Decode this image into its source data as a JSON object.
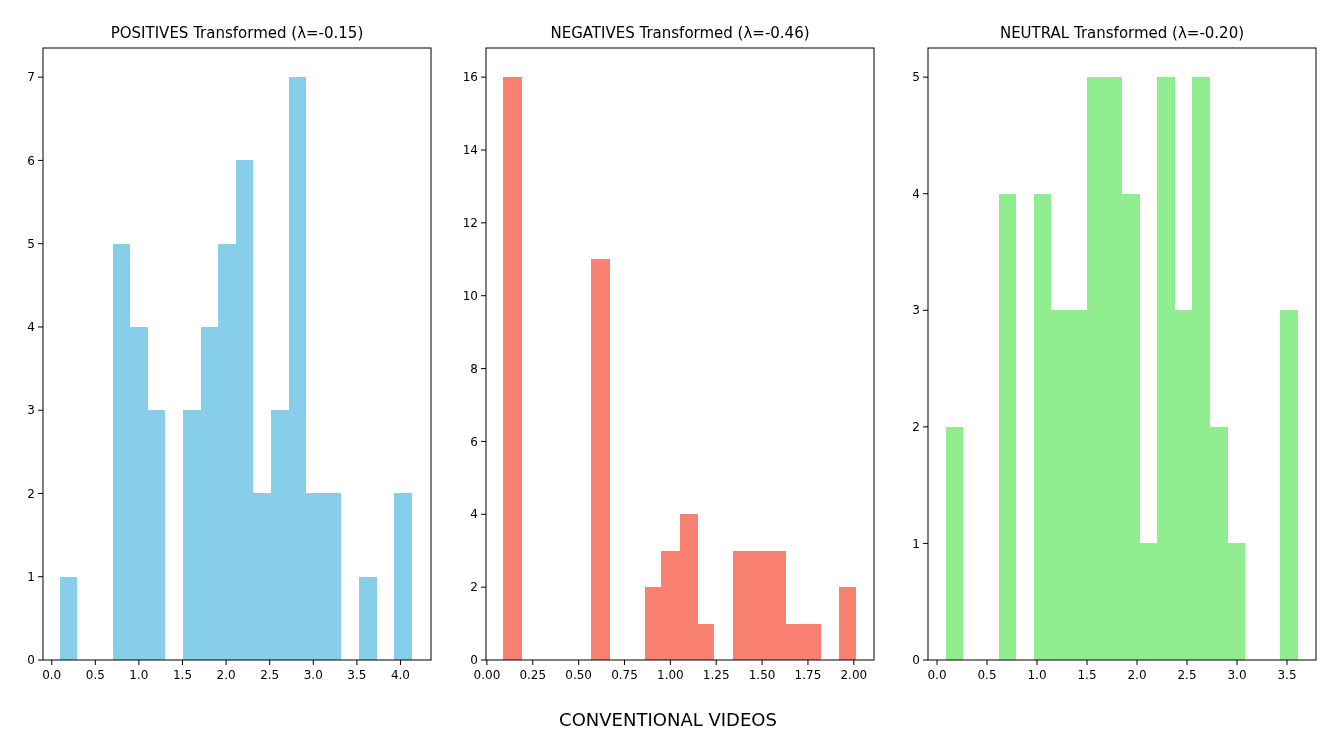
{
  "chart_data": [
    {
      "type": "histogram",
      "title": "POSITIVES Transformed (λ=-0.15)",
      "color": "#87ceeb",
      "bins": [
        0.09,
        0.29,
        0.7,
        0.9,
        1.1,
        1.3,
        1.5,
        1.71,
        1.91,
        2.11,
        2.31,
        2.51,
        2.72,
        2.92,
        3.12,
        3.32,
        3.52,
        3.73,
        3.93,
        4.13
      ],
      "values": [
        1,
        0,
        5,
        4,
        3,
        0,
        3,
        4,
        5,
        6,
        2,
        3,
        7,
        2,
        2,
        0,
        1,
        0,
        2
      ],
      "xlim": [
        -0.1,
        4.35
      ],
      "xticks": [
        {
          "value": 0,
          "label": "0.0"
        },
        0.5,
        {
          "value": 1,
          "label": "1.0"
        },
        1.5,
        {
          "value": 2,
          "label": "2.0"
        },
        2.5,
        {
          "value": 3,
          "label": "3.0"
        },
        3.5,
        {
          "value": 4,
          "label": "4.0"
        }
      ],
      "ylim": [
        0,
        7.35
      ],
      "yticks": [
        0,
        1,
        2,
        3,
        4,
        5,
        6,
        7
      ]
    },
    {
      "type": "histogram",
      "title": "NEGATIVES Transformed (λ=-0.46)",
      "color": "#fa8072",
      "bins": [
        0.09,
        0.19,
        0.57,
        0.67,
        0.86,
        0.95,
        1.05,
        1.15,
        1.24,
        1.34,
        1.43,
        1.53,
        1.63,
        1.72,
        1.82,
        1.92,
        2.01
      ],
      "values": [
        16,
        0,
        11,
        0,
        2,
        3,
        4,
        1,
        0,
        3,
        3,
        3,
        1,
        1,
        0,
        2
      ],
      "xlim": [
        -0.005,
        2.11
      ],
      "xticks": [
        {
          "value": 0,
          "label": "0.00"
        },
        0.25,
        {
          "value": 0.5,
          "label": "0.50"
        },
        0.75,
        {
          "value": 1,
          "label": "1.00"
        },
        1.25,
        {
          "value": 1.5,
          "label": "1.50"
        },
        1.75,
        {
          "value": 2,
          "label": "2.00"
        }
      ],
      "ylim": [
        0,
        16.8
      ],
      "yticks": [
        0,
        2,
        4,
        6,
        8,
        10,
        12,
        14,
        16
      ],
      "annotations": [
        "CONVENTIONAL VIDEOS"
      ]
    },
    {
      "type": "histogram",
      "title": "NEUTRAL Transformed (λ=-0.20)",
      "color": "#90ee90",
      "bins": [
        0.09,
        0.26,
        0.62,
        0.79,
        0.97,
        1.14,
        1.32,
        1.5,
        1.67,
        1.85,
        2.03,
        2.2,
        2.38,
        2.55,
        2.73,
        2.91,
        3.08,
        3.43,
        3.61
      ],
      "values": [
        2,
        0,
        4,
        0,
        4,
        3,
        3,
        5,
        5,
        4,
        1,
        5,
        3,
        5,
        2,
        1,
        0,
        3
      ],
      "xlim": [
        -0.09,
        3.79
      ],
      "xticks": [
        {
          "value": 0,
          "label": "0.0"
        },
        0.5,
        {
          "value": 1,
          "label": "1.0"
        },
        1.5,
        {
          "value": 2,
          "label": "2.0"
        },
        2.5,
        {
          "value": 3,
          "label": "3.0"
        },
        3.5
      ],
      "ylim": [
        0,
        5.25
      ],
      "yticks": [
        0,
        1,
        2,
        3,
        4,
        5
      ]
    }
  ]
}
